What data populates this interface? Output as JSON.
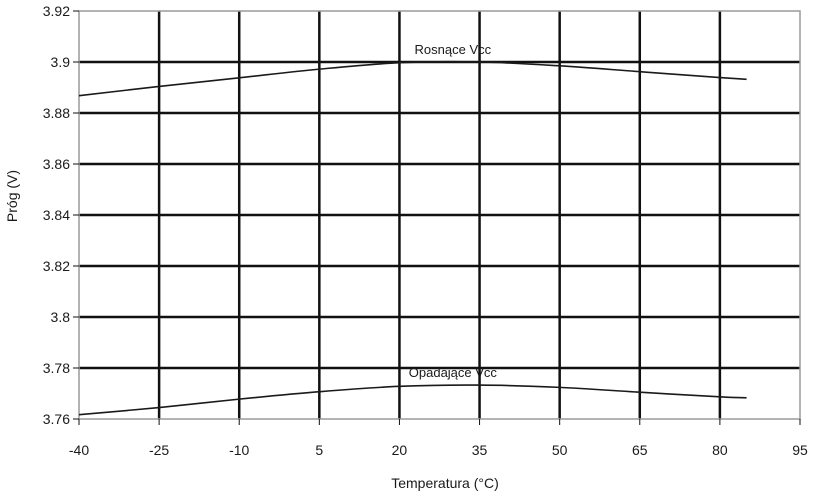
{
  "chart_data": {
    "type": "line",
    "title": "",
    "xlabel": "Temperatura (°C)",
    "ylabel": "Próg (V)",
    "xlim": [
      -40,
      95
    ],
    "ylim": [
      3.76,
      3.92
    ],
    "x_ticks": [
      "-40",
      "-25",
      "-10",
      "5",
      "20",
      "35",
      "50",
      "65",
      "80",
      "95"
    ],
    "y_ticks": [
      "3.76",
      "3.78",
      "3.8",
      "3.82",
      "3.84",
      "3.86",
      "3.88",
      "3.9",
      "3.92"
    ],
    "grid": true,
    "series": [
      {
        "name": "Rosnące Vcc",
        "x": [
          -40,
          -25,
          -10,
          5,
          20,
          35,
          50,
          65,
          80,
          85
        ],
        "values": [
          3.8868,
          3.8904,
          3.8938,
          3.8972,
          3.8997,
          3.9,
          3.8985,
          3.8962,
          3.8939,
          3.8932
        ]
      },
      {
        "name": "Opadające Vcc",
        "x": [
          -40,
          -25,
          -10,
          5,
          20,
          35,
          50,
          65,
          80,
          85
        ],
        "values": [
          3.7617,
          3.7645,
          3.7678,
          3.7707,
          3.7728,
          3.7733,
          3.7724,
          3.7705,
          3.7687,
          3.7683
        ]
      }
    ]
  }
}
